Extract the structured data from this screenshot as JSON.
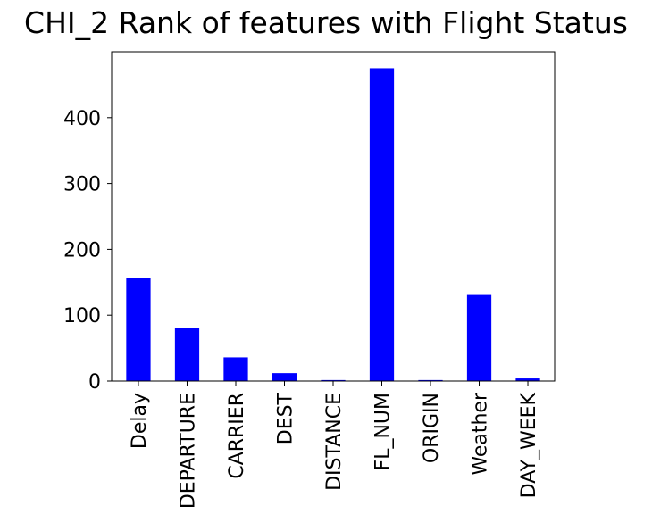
{
  "chart_data": {
    "type": "bar",
    "title": "CHI_2 Rank of features with Flight Status",
    "xlabel": "",
    "ylabel": "",
    "categories": [
      "Delay",
      "DEPARTURE",
      "CARRIER",
      "DEST",
      "DISTANCE",
      "FL_NUM",
      "ORIGIN",
      "Weather",
      "DAY_WEEK"
    ],
    "values": [
      157,
      81,
      36,
      12,
      1.5,
      475,
      1.5,
      132,
      4
    ],
    "ylim": [
      0,
      500
    ],
    "yticks": [
      0,
      100,
      200,
      300,
      400
    ],
    "bar_color": "#0000ff",
    "grid": false,
    "legend": "none"
  }
}
